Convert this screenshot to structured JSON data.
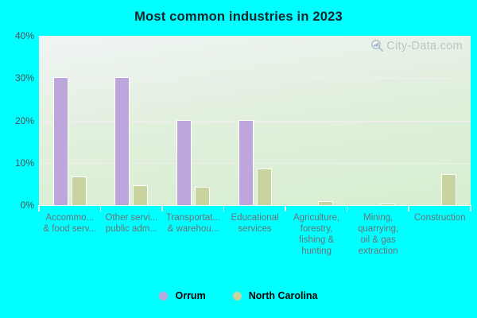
{
  "watermark": {
    "text": "City-Data.com"
  },
  "chart_data": {
    "type": "bar",
    "title": "Most common industries in 2023",
    "ylim": [
      0,
      40
    ],
    "yticks": [
      "40%",
      "30%",
      "20%",
      "10%",
      "0%"
    ],
    "grid": "horizontal",
    "legend_position": "bottom",
    "plot_bg_top": "#eff4f4",
    "plot_bg_bottom": "#d7eecf",
    "background": "#00ffff",
    "categories": [
      {
        "label_lines": [
          "Accommo...",
          "& food serv..."
        ],
        "full_label": "Accommodation & food services"
      },
      {
        "label_lines": [
          "Other servi...",
          "public adm..."
        ],
        "full_label": "Other services, public administration"
      },
      {
        "label_lines": [
          "Transportat...",
          "& warehou..."
        ],
        "full_label": "Transportation & warehousing"
      },
      {
        "label_lines": [
          "Educational",
          "services"
        ],
        "full_label": "Educational services"
      },
      {
        "label_lines": [
          "Agriculture,",
          "forestry,",
          "fishing &",
          "hunting"
        ],
        "full_label": "Agriculture, forestry, fishing & hunting"
      },
      {
        "label_lines": [
          "Mining,",
          "quarrying,",
          "oil & gas",
          "extraction"
        ],
        "full_label": "Mining, quarrying, oil & gas extraction"
      },
      {
        "label_lines": [
          "Construction"
        ],
        "full_label": "Construction"
      }
    ],
    "series": [
      {
        "key": "orrum",
        "name": "Orrum",
        "color": "#bda6dc",
        "values": [
          30,
          30,
          20,
          20,
          0,
          0,
          0
        ]
      },
      {
        "key": "nc",
        "name": "North Carolina",
        "color": "#c8d3a0",
        "values": [
          6.6,
          4.6,
          4.1,
          8.4,
          0.8,
          0.2,
          7.1
        ]
      }
    ]
  }
}
